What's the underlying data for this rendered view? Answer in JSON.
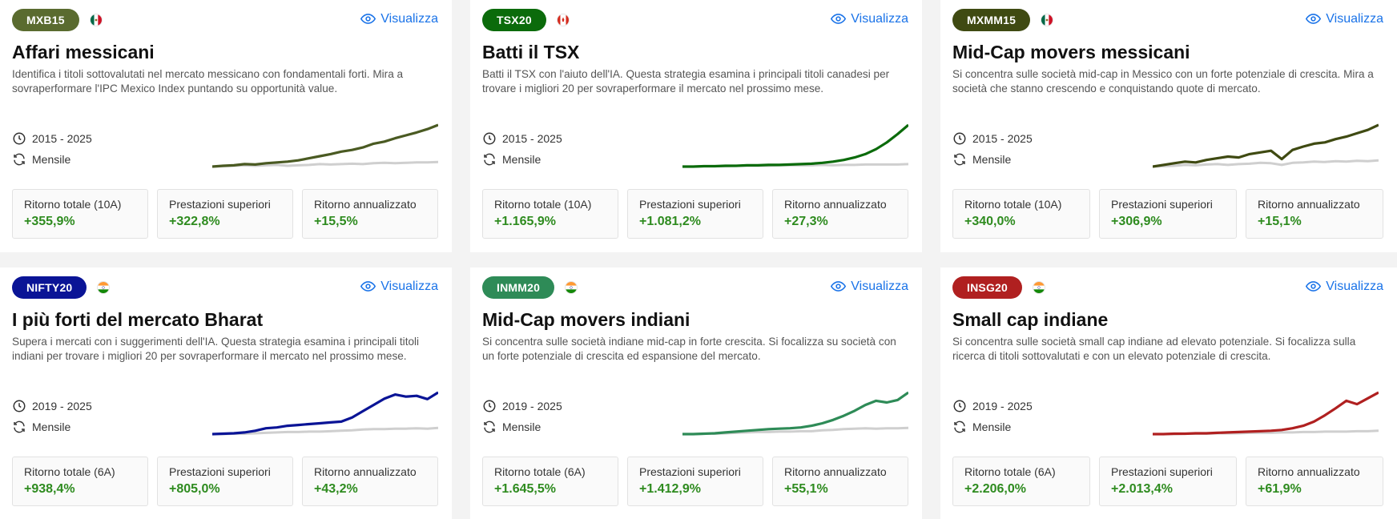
{
  "view_label": "Visualizza",
  "cards": [
    {
      "badge": "MXB15",
      "badge_color": "#5a6b2f",
      "line_color": "#4a5a22",
      "flag": "mexico-flag-icon",
      "title": "Affari messicani",
      "description": "Identifica i titoli sottovalutati nel mercato messicano con fondamentali forti. Mira a sovraperformare l'IPC Mexico Index puntando su opportunità value.",
      "period": "2015 - 2025",
      "frequency": "Mensile",
      "stats": [
        {
          "label": "Ritorno totale (10A)",
          "value": "+355,9%"
        },
        {
          "label": "Prestazioni superiori",
          "value": "+322,8%"
        },
        {
          "label": "Ritorno annualizzato",
          "value": "+15,5%"
        }
      ],
      "strategy_series": [
        0,
        2,
        3,
        6,
        5,
        8,
        10,
        12,
        15,
        20,
        25,
        30,
        36,
        40,
        46,
        55,
        60,
        68,
        75,
        82,
        90,
        100
      ],
      "benchmark_series": [
        0,
        1,
        2,
        3,
        2,
        3,
        4,
        2,
        3,
        4,
        6,
        5,
        6,
        7,
        6,
        8,
        9,
        8,
        9,
        10,
        10,
        11
      ]
    },
    {
      "badge": "TSX20",
      "badge_color": "#0b6b0b",
      "line_color": "#0b6b0b",
      "flag": "canada-flag-icon",
      "title": "Batti il TSX",
      "description": "Batti il TSX con l'aiuto dell'IA. Questa strategia esamina i principali titoli canadesi per trovare i migliori 20 per sovraperformare il mercato nel prossimo mese.",
      "period": "2015 - 2025",
      "frequency": "Mensile",
      "stats": [
        {
          "label": "Ritorno totale (10A)",
          "value": "+1.165,9%"
        },
        {
          "label": "Prestazioni superiori",
          "value": "+1.081,2%"
        },
        {
          "label": "Ritorno annualizzato",
          "value": "+27,3%"
        }
      ],
      "strategy_series": [
        0,
        0,
        1,
        1,
        2,
        2,
        3,
        3,
        4,
        4,
        5,
        6,
        7,
        9,
        12,
        16,
        22,
        30,
        42,
        58,
        78,
        100
      ],
      "benchmark_series": [
        0,
        0,
        1,
        1,
        1,
        2,
        2,
        2,
        2,
        3,
        3,
        3,
        3,
        4,
        3,
        4,
        4,
        5,
        5,
        5,
        5,
        6
      ]
    },
    {
      "badge": "MXMM15",
      "badge_color": "#3f4a12",
      "line_color": "#3f4a12",
      "flag": "mexico-flag-icon",
      "title": "Mid-Cap movers messicani",
      "description": "Si concentra sulle società mid-cap in Messico con un forte potenziale di crescita. Mira a società che stanno crescendo e conquistando quote di mercato.",
      "period": "2015 - 2025",
      "frequency": "Mensile",
      "stats": [
        {
          "label": "Ritorno totale (10A)",
          "value": "+340,0%"
        },
        {
          "label": "Prestazioni superiori",
          "value": "+306,9%"
        },
        {
          "label": "Ritorno annualizzato",
          "value": "+15,1%"
        }
      ],
      "strategy_series": [
        0,
        4,
        8,
        12,
        10,
        16,
        20,
        24,
        22,
        30,
        34,
        38,
        18,
        40,
        48,
        55,
        58,
        66,
        72,
        80,
        88,
        100
      ],
      "benchmark_series": [
        0,
        1,
        2,
        4,
        3,
        5,
        6,
        4,
        6,
        7,
        9,
        8,
        4,
        9,
        10,
        12,
        11,
        13,
        12,
        14,
        13,
        15
      ]
    },
    {
      "badge": "NIFTY20",
      "badge_color": "#0a1496",
      "line_color": "#0a1496",
      "flag": "india-flag-icon",
      "title": "I più forti del mercato Bharat",
      "description": "Supera i mercati con i suggerimenti dell'IA. Questa strategia esamina i principali titoli indiani per trovare i migliori 20 per sovraperformare il mercato nel prossimo mese.",
      "period": "2019 - 2025",
      "frequency": "Mensile",
      "stats": [
        {
          "label": "Ritorno totale (6A)",
          "value": "+938,4%"
        },
        {
          "label": "Prestazioni superiori",
          "value": "+805,0%"
        },
        {
          "label": "Ritorno annualizzato",
          "value": "+43,2%"
        }
      ],
      "strategy_series": [
        0,
        1,
        2,
        4,
        8,
        14,
        16,
        20,
        22,
        24,
        26,
        28,
        30,
        40,
        55,
        70,
        85,
        95,
        90,
        92,
        84,
        100
      ],
      "benchmark_series": [
        0,
        0,
        1,
        1,
        2,
        3,
        4,
        5,
        5,
        6,
        6,
        7,
        8,
        9,
        11,
        12,
        12,
        13,
        13,
        14,
        13,
        15
      ]
    },
    {
      "badge": "INMM20",
      "badge_color": "#2e8b57",
      "line_color": "#2e8b57",
      "flag": "india-flag-icon",
      "title": "Mid-Cap movers indiani",
      "description": "Si concentra sulle società indiane mid-cap in forte crescita. Si focalizza su società con un forte potenziale di crescita ed espansione del mercato.",
      "period": "2019 - 2025",
      "frequency": "Mensile",
      "stats": [
        {
          "label": "Ritorno totale (6A)",
          "value": "+1.645,5%"
        },
        {
          "label": "Prestazioni superiori",
          "value": "+1.412,9%"
        },
        {
          "label": "Ritorno annualizzato",
          "value": "+55,1%"
        }
      ],
      "strategy_series": [
        0,
        0,
        1,
        2,
        4,
        6,
        8,
        10,
        12,
        13,
        14,
        16,
        20,
        26,
        34,
        44,
        56,
        70,
        80,
        76,
        82,
        100
      ],
      "benchmark_series": [
        0,
        0,
        1,
        1,
        2,
        3,
        4,
        5,
        5,
        6,
        6,
        7,
        7,
        9,
        10,
        12,
        13,
        14,
        13,
        14,
        14,
        15
      ]
    },
    {
      "badge": "INSG20",
      "badge_color": "#b02020",
      "line_color": "#b02020",
      "flag": "india-flag-icon",
      "title": "Small cap indiane",
      "description": "Si concentra sulle società small cap indiane ad elevato potenziale. Si focalizza sulla ricerca di titoli sottovalutati e con un elevato potenziale di crescita.",
      "period": "2019 - 2025",
      "frequency": "Mensile",
      "stats": [
        {
          "label": "Ritorno totale (6A)",
          "value": "+2.206,0%"
        },
        {
          "label": "Prestazioni superiori",
          "value": "+2.013,4%"
        },
        {
          "label": "Ritorno annualizzato",
          "value": "+61,9%"
        }
      ],
      "strategy_series": [
        0,
        0,
        1,
        1,
        2,
        2,
        3,
        4,
        5,
        6,
        7,
        8,
        10,
        14,
        20,
        30,
        45,
        62,
        80,
        72,
        86,
        100
      ],
      "benchmark_series": [
        0,
        0,
        0,
        1,
        1,
        1,
        2,
        2,
        2,
        3,
        3,
        3,
        4,
        4,
        5,
        5,
        6,
        6,
        6,
        7,
        7,
        8
      ]
    }
  ]
}
